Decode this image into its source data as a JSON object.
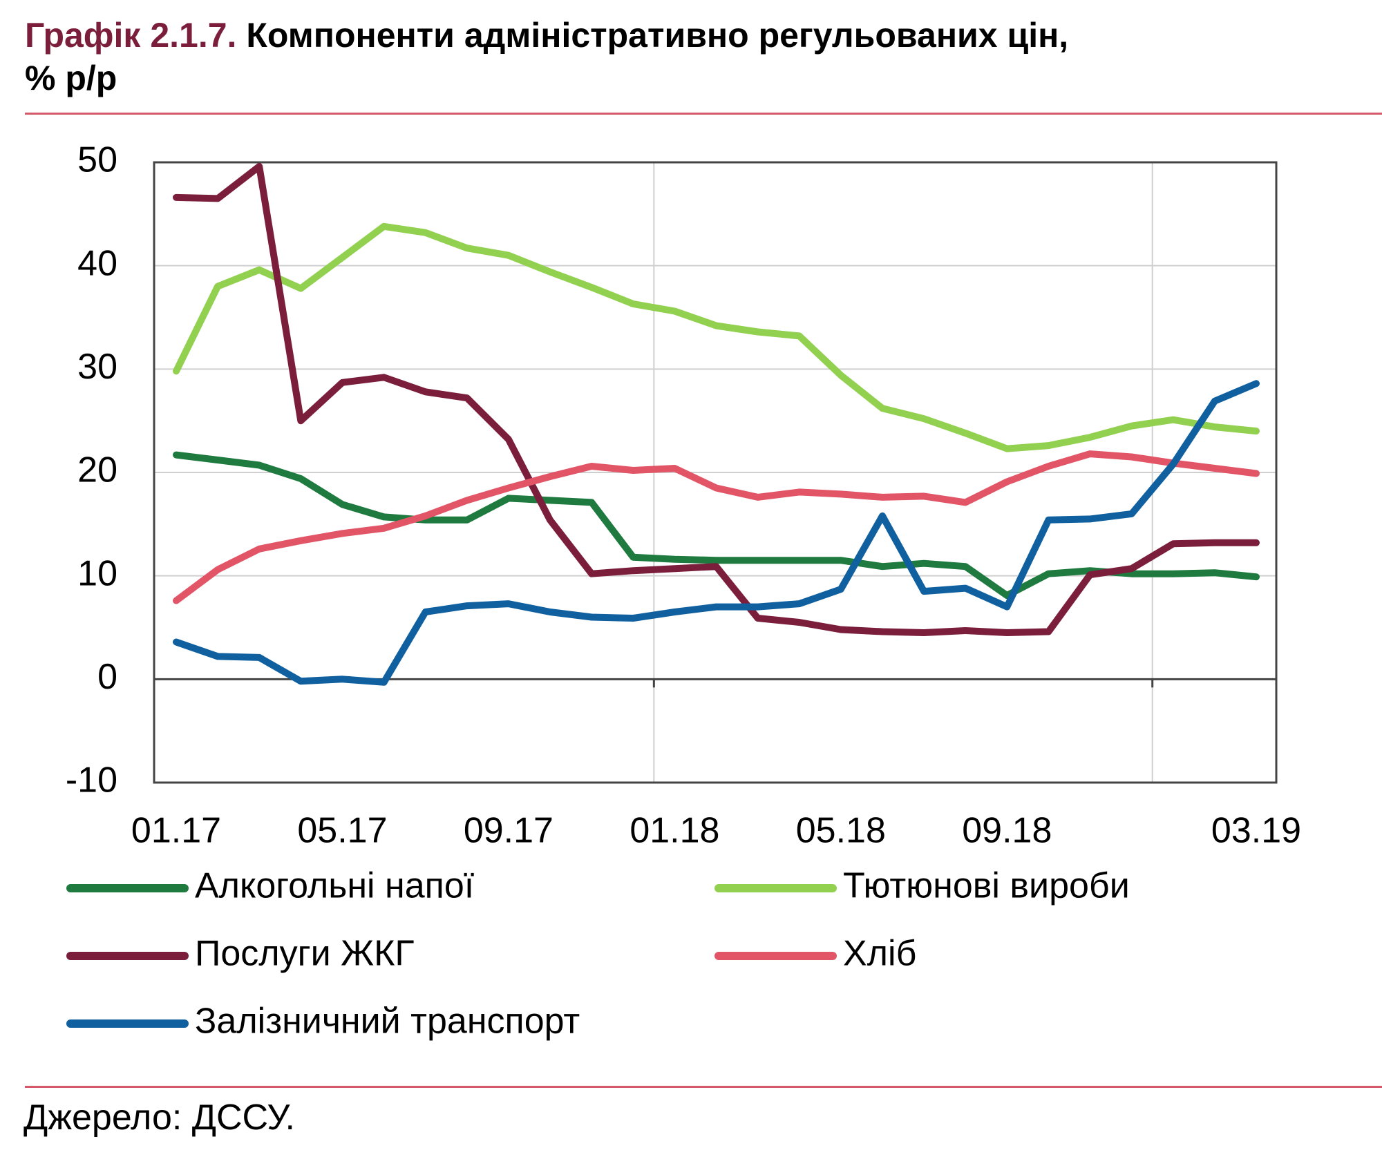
{
  "chart_data": {
    "type": "line",
    "title_label": "Графік 2.1.7.",
    "title": "Компоненти адміністративно регульованих цін,",
    "subtitle": "% р/р",
    "source": "Джерело: ДССУ.",
    "categories": [
      "01.17",
      null,
      null,
      null,
      "05.17",
      null,
      null,
      null,
      "09.17",
      null,
      null,
      null,
      "01.18",
      null,
      null,
      null,
      "05.18",
      null,
      null,
      null,
      "09.18",
      null,
      null,
      null,
      null,
      null,
      "03.19"
    ],
    "series": [
      {
        "name": "Алкогольні напої",
        "color": "#1e7a3e",
        "values": [
          21.7,
          21.2,
          20.7,
          19.4,
          16.9,
          15.7,
          15.4,
          15.4,
          17.5,
          17.3,
          17.1,
          11.8,
          11.6,
          11.5,
          11.5,
          11.5,
          11.5,
          10.9,
          11.2,
          10.9,
          8.1,
          10.2,
          10.5,
          10.2,
          10.2,
          10.3,
          9.9
        ]
      },
      {
        "name": "Тютюнові вироби",
        "color": "#92d050",
        "values": [
          29.8,
          38.0,
          39.6,
          37.8,
          40.8,
          43.8,
          43.2,
          41.7,
          41.0,
          39.4,
          37.9,
          36.3,
          35.6,
          34.2,
          33.6,
          33.2,
          29.4,
          26.2,
          25.2,
          23.8,
          22.3,
          22.6,
          23.4,
          24.5,
          25.1,
          24.4,
          24.0
        ]
      },
      {
        "name": "Послуги ЖКГ",
        "color": "#7b1e3c",
        "values": [
          46.6,
          46.5,
          49.6,
          25.0,
          28.7,
          29.2,
          27.8,
          27.2,
          23.2,
          15.4,
          10.2,
          10.5,
          10.7,
          10.9,
          5.9,
          5.5,
          4.8,
          4.6,
          4.5,
          4.7,
          4.5,
          4.6,
          10.1,
          10.7,
          13.1,
          13.2,
          13.2
        ]
      },
      {
        "name": "Хліб",
        "color": "#e25567",
        "values": [
          7.6,
          10.6,
          12.6,
          13.4,
          14.1,
          14.6,
          15.8,
          17.3,
          18.5,
          19.6,
          20.6,
          20.2,
          20.4,
          18.5,
          17.6,
          18.1,
          17.9,
          17.6,
          17.7,
          17.1,
          19.1,
          20.6,
          21.8,
          21.5,
          20.9,
          20.4,
          19.9
        ]
      },
      {
        "name": "Залізничний транспорт",
        "color": "#1060a0",
        "values": [
          3.6,
          2.2,
          2.1,
          -0.2,
          0.0,
          -0.3,
          6.5,
          7.1,
          7.3,
          6.5,
          6.0,
          5.9,
          6.5,
          7.0,
          7.0,
          7.3,
          8.7,
          15.8,
          8.5,
          8.8,
          7.0,
          15.4,
          15.5,
          16.0,
          20.8,
          26.9,
          28.6
        ]
      }
    ],
    "ylim": [
      -10,
      50
    ],
    "yticks": [
      -10,
      0,
      10,
      20,
      30,
      40,
      50
    ],
    "grid": true
  }
}
